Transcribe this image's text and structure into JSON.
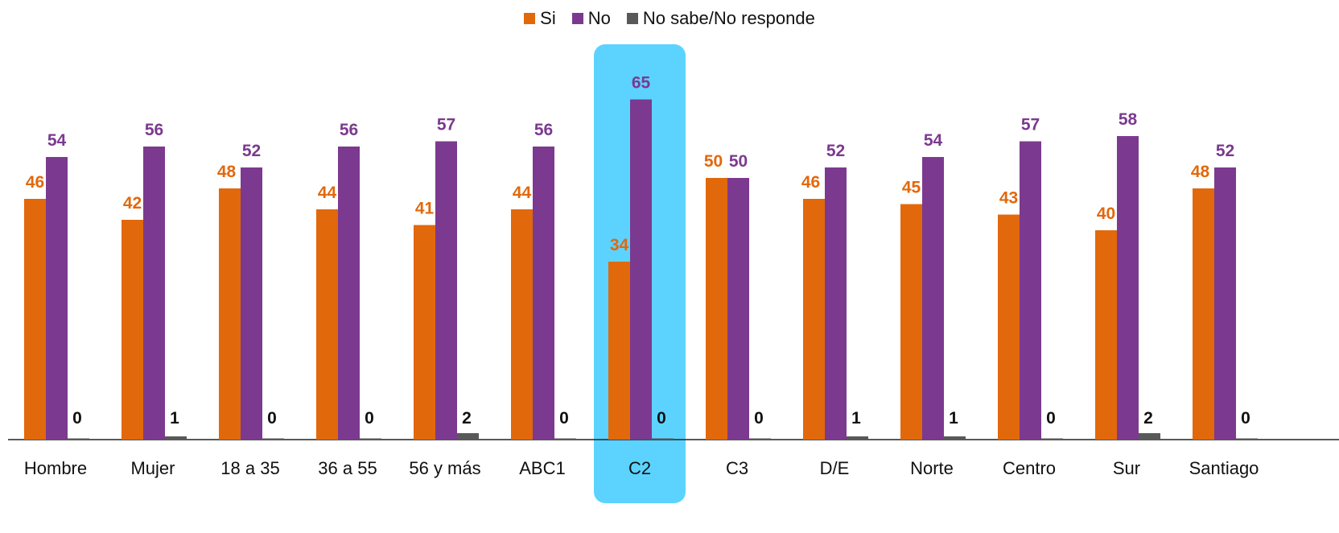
{
  "chart_data": {
    "type": "bar",
    "title": "",
    "xlabel": "",
    "ylabel": "",
    "ylim": [
      0,
      70
    ],
    "grid": false,
    "legend": "top-center",
    "categories": [
      "Hombre",
      "Mujer",
      "18 a 35",
      "36 a 55",
      "56 y más",
      "ABC1",
      "C2",
      "C3",
      "D/E",
      "Norte",
      "Centro",
      "Sur",
      "Santiago"
    ],
    "highlight_category": "C2",
    "series": [
      {
        "name": "Si",
        "color": "#E2680C",
        "values": [
          46,
          42,
          48,
          44,
          41,
          44,
          34,
          50,
          46,
          45,
          43,
          40,
          48
        ]
      },
      {
        "name": "No",
        "color": "#7B3A8F",
        "values": [
          54,
          56,
          52,
          56,
          57,
          56,
          65,
          50,
          52,
          54,
          57,
          58,
          52
        ]
      },
      {
        "name": "No sabe/No responde",
        "color": "#595959",
        "values": [
          0,
          1,
          0,
          0,
          2,
          0,
          0,
          0,
          1,
          1,
          0,
          2,
          0
        ]
      }
    ],
    "label_colors": [
      "#E2680C",
      "#7B3A8F",
      "#111111"
    ],
    "highlight_color": "#5CD3FF",
    "axis_color": "#222222"
  }
}
